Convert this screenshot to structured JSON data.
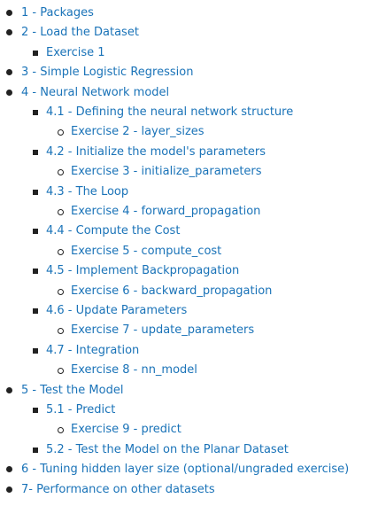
{
  "toc": [
    {
      "level": 1,
      "text": "1 - Packages"
    },
    {
      "level": 1,
      "text": "2 - Load the Dataset"
    },
    {
      "level": 2,
      "text": "Exercise 1"
    },
    {
      "level": 1,
      "text": "3 - Simple Logistic Regression"
    },
    {
      "level": 1,
      "text": "4 - Neural Network model"
    },
    {
      "level": 2,
      "text": "4.1 - Defining the neural network structure"
    },
    {
      "level": 3,
      "text": "Exercise 2 - layer_sizes"
    },
    {
      "level": 2,
      "text": "4.2 - Initialize the model's parameters"
    },
    {
      "level": 3,
      "text": "Exercise 3 - initialize_parameters"
    },
    {
      "level": 2,
      "text": "4.3 - The Loop"
    },
    {
      "level": 3,
      "text": "Exercise 4 - forward_propagation"
    },
    {
      "level": 2,
      "text": "4.4 - Compute the Cost"
    },
    {
      "level": 3,
      "text": "Exercise 5 - compute_cost"
    },
    {
      "level": 2,
      "text": "4.5 - Implement Backpropagation"
    },
    {
      "level": 3,
      "text": "Exercise 6 - backward_propagation"
    },
    {
      "level": 2,
      "text": "4.6 - Update Parameters"
    },
    {
      "level": 3,
      "text": "Exercise 7 - update_parameters"
    },
    {
      "level": 2,
      "text": "4.7 - Integration"
    },
    {
      "level": 3,
      "text": "Exercise 8 - nn_model"
    },
    {
      "level": 1,
      "text": "5 - Test the Model"
    },
    {
      "level": 2,
      "text": "5.1 - Predict"
    },
    {
      "level": 3,
      "text": "Exercise 9 - predict"
    },
    {
      "level": 2,
      "text": "5.2 - Test the Model on the Planar Dataset"
    },
    {
      "level": 1,
      "text": "6 - Tuning hidden layer size (optional/ungraded exercise)"
    },
    {
      "level": 1,
      "text": "7- Performance on other datasets"
    }
  ],
  "colors": {
    "link": "#1a73b8",
    "bullet": "#222222"
  }
}
